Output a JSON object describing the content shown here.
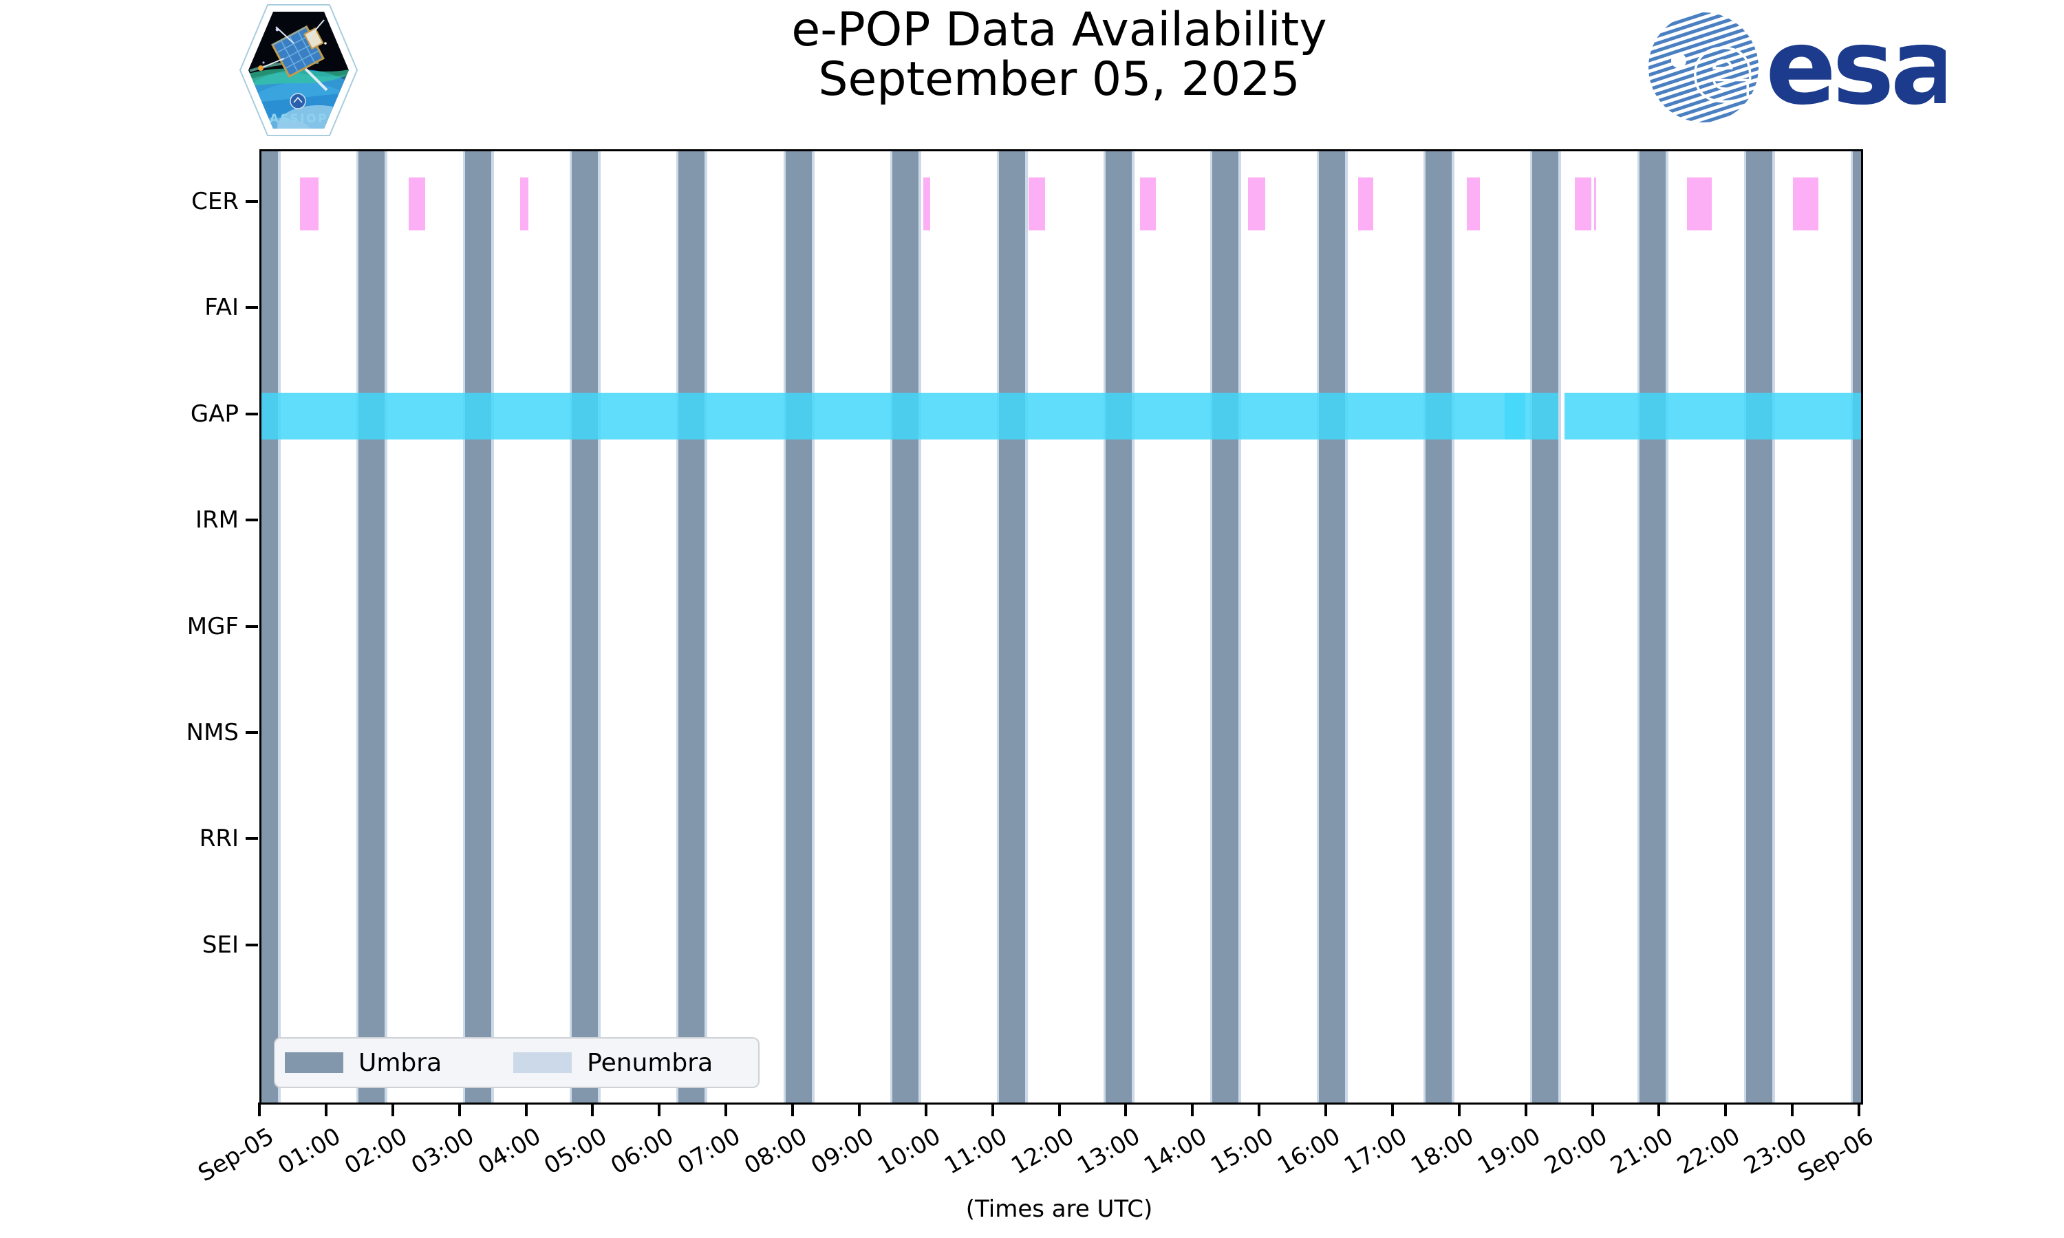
{
  "title": {
    "line1": "e-POP Data Availability",
    "line2": "September 05, 2025"
  },
  "x_axis_title": "(Times are UTC)",
  "logos": {
    "cassiope_label": "CASSIOPE",
    "esa_label": "esa"
  },
  "legend": {
    "items": [
      {
        "label": "Umbra",
        "color": "#8296ac"
      },
      {
        "label": "Penumbra",
        "color": "#ccd9e8"
      }
    ]
  },
  "colors": {
    "umbra": "#8296ac",
    "penumbra": "#ccd9e8",
    "cer_pink": "#fdaff5",
    "gap_cyan_rgba": "rgba(68,215,249,0.85)",
    "axis": "#000000",
    "esa_navy": "#1c3b8c",
    "esa_stripe_blue": "#4a7fc1"
  },
  "chart_data": {
    "type": "timeline",
    "title": "e-POP Data Availability September 05, 2025",
    "xlabel": "(Times are UTC)",
    "x_range_hours": [
      0,
      24
    ],
    "x_tick_labels": [
      "Sep-05",
      "01:00",
      "02:00",
      "03:00",
      "04:00",
      "05:00",
      "06:00",
      "07:00",
      "08:00",
      "09:00",
      "10:00",
      "11:00",
      "12:00",
      "13:00",
      "14:00",
      "15:00",
      "16:00",
      "17:00",
      "18:00",
      "19:00",
      "20:00",
      "21:00",
      "22:00",
      "23:00",
      "Sep-06"
    ],
    "rows": [
      "CER",
      "FAI",
      "GAP",
      "IRM",
      "MGF",
      "NMS",
      "RRI",
      "SEI"
    ],
    "umbra_intervals_hours": [
      [
        0.0,
        0.25
      ],
      [
        1.46,
        1.85
      ],
      [
        3.06,
        3.45
      ],
      [
        4.66,
        5.05
      ],
      [
        6.26,
        6.65
      ],
      [
        7.87,
        8.26
      ],
      [
        9.47,
        9.86
      ],
      [
        11.07,
        11.46
      ],
      [
        12.67,
        13.06
      ],
      [
        14.27,
        14.66
      ],
      [
        15.87,
        16.26
      ],
      [
        17.47,
        17.86
      ],
      [
        19.07,
        19.46
      ],
      [
        20.68,
        21.07
      ],
      [
        22.28,
        22.67
      ],
      [
        23.88,
        24.0
      ]
    ],
    "penumbra_edge_hours": 0.035,
    "cer_intervals_hours": [
      [
        0.58,
        0.86
      ],
      [
        2.21,
        2.46
      ],
      [
        3.88,
        4.01
      ],
      [
        9.93,
        10.03
      ],
      [
        11.51,
        11.76
      ],
      [
        13.18,
        13.42
      ],
      [
        14.8,
        15.06
      ],
      [
        16.45,
        16.68
      ],
      [
        18.08,
        18.28
      ],
      [
        19.71,
        19.95
      ],
      [
        19.99,
        20.02
      ],
      [
        21.39,
        21.76
      ],
      [
        22.98,
        23.36
      ]
    ],
    "gap_intervals_hours": [
      [
        0.0,
        19.46
      ],
      [
        19.55,
        24.0
      ]
    ],
    "gap_overlap_intervals_hours": [
      [
        18.65,
        18.96
      ]
    ],
    "legend_entries": [
      "Umbra",
      "Penumbra"
    ]
  }
}
